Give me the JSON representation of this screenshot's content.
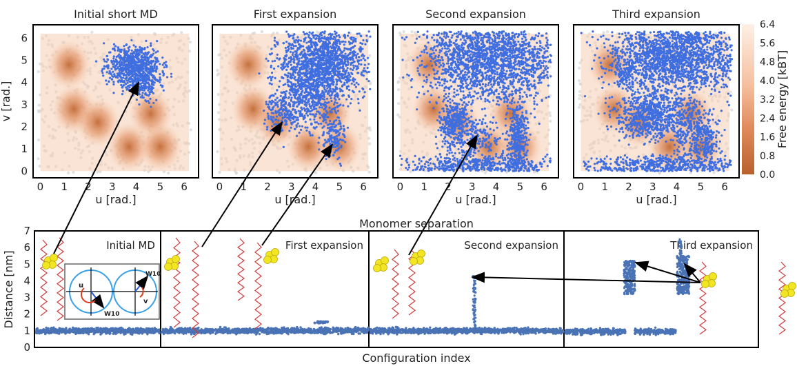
{
  "figure": {
    "colorbar_label": "Free energy [kBT]",
    "colorbar_ticks": [
      "6.4",
      "5.6",
      "4.8",
      "4.0",
      "3.2",
      "2.4",
      "1.6",
      "0.8",
      "0.0"
    ],
    "colors": {
      "sample_points": "#3f6ee0",
      "free_energy_low": "#b8612d",
      "free_energy_high": "#fdf0e6",
      "unsampled": "#d6d6d6",
      "trace": "#4a73b5",
      "arrow": "#000000"
    }
  },
  "chart_data": [
    {
      "type": "heatmap",
      "title": "Initial short MD",
      "xlabel": "u [rad.]",
      "ylabel": "v [rad.]",
      "xlim": [
        -0.3,
        6.6
      ],
      "ylim": [
        -0.3,
        6.6
      ],
      "xticks": [
        "0",
        "1",
        "2",
        "3",
        "4",
        "5",
        "6"
      ],
      "yticks": [
        "0",
        "1",
        "2",
        "3",
        "4",
        "5",
        "6"
      ],
      "free_energy_minima": [
        [
          1.2,
          4.8
        ],
        [
          1.4,
          2.8
        ],
        [
          2.4,
          2.2
        ],
        [
          3.7,
          1.1
        ],
        [
          5.0,
          1.1
        ],
        [
          4.6,
          2.6
        ]
      ],
      "sampled_region": "u 2.7–5.2, v 3.4–5.4"
    },
    {
      "type": "heatmap",
      "title": "First expansion",
      "xlabel": "u [rad.]",
      "xlim": [
        -0.3,
        6.6
      ],
      "ylim": [
        -0.3,
        6.6
      ],
      "xticks": [
        "0",
        "1",
        "2",
        "3",
        "4",
        "5",
        "6"
      ],
      "sampled_region": "u 1.9–6.0, v 1.0–6.0"
    },
    {
      "type": "heatmap",
      "title": "Second expansion",
      "xlabel": "u [rad.]",
      "xlim": [
        -0.3,
        6.6
      ],
      "ylim": [
        -0.3,
        6.6
      ],
      "xticks": [
        "0",
        "1",
        "2",
        "3",
        "4",
        "5",
        "6"
      ],
      "sampled_region": "u 1.0–6.2, v 0–6.3"
    },
    {
      "type": "heatmap",
      "title": "Third expansion",
      "xlabel": "u [rad.]",
      "xlim": [
        -0.3,
        6.6
      ],
      "ylim": [
        -0.3,
        6.6
      ],
      "xticks": [
        "0",
        "1",
        "2",
        "3",
        "4",
        "5",
        "6"
      ],
      "sampled_region": "u 0.5–6.2, v 0–6.3"
    },
    {
      "type": "scatter",
      "title": "Monomer separation",
      "xlabel": "Configuration index",
      "ylabel": "Distance [nm]",
      "ylim": [
        0,
        7
      ],
      "yticks": [
        "0",
        "1",
        "2",
        "3",
        "4",
        "5",
        "6",
        "7"
      ],
      "segments": [
        {
          "label": "Initial MD",
          "baseline_nm": 1.0
        },
        {
          "label": "First expansion",
          "baseline_nm": 1.0,
          "bump_nm": 1.5
        },
        {
          "label": "Second expansion",
          "baseline_nm": 1.0,
          "spike_max_nm": 4.3
        },
        {
          "label": "Third expansion",
          "baseline_nm": 0.95,
          "cluster_ranges_nm": [
            [
              3.2,
              5.2
            ],
            [
              3.2,
              6.5
            ]
          ]
        }
      ]
    }
  ],
  "inset": {
    "label_w10_top": "W10",
    "label_w10_bottom": "W10",
    "label_u": "u",
    "label_v": "v"
  }
}
